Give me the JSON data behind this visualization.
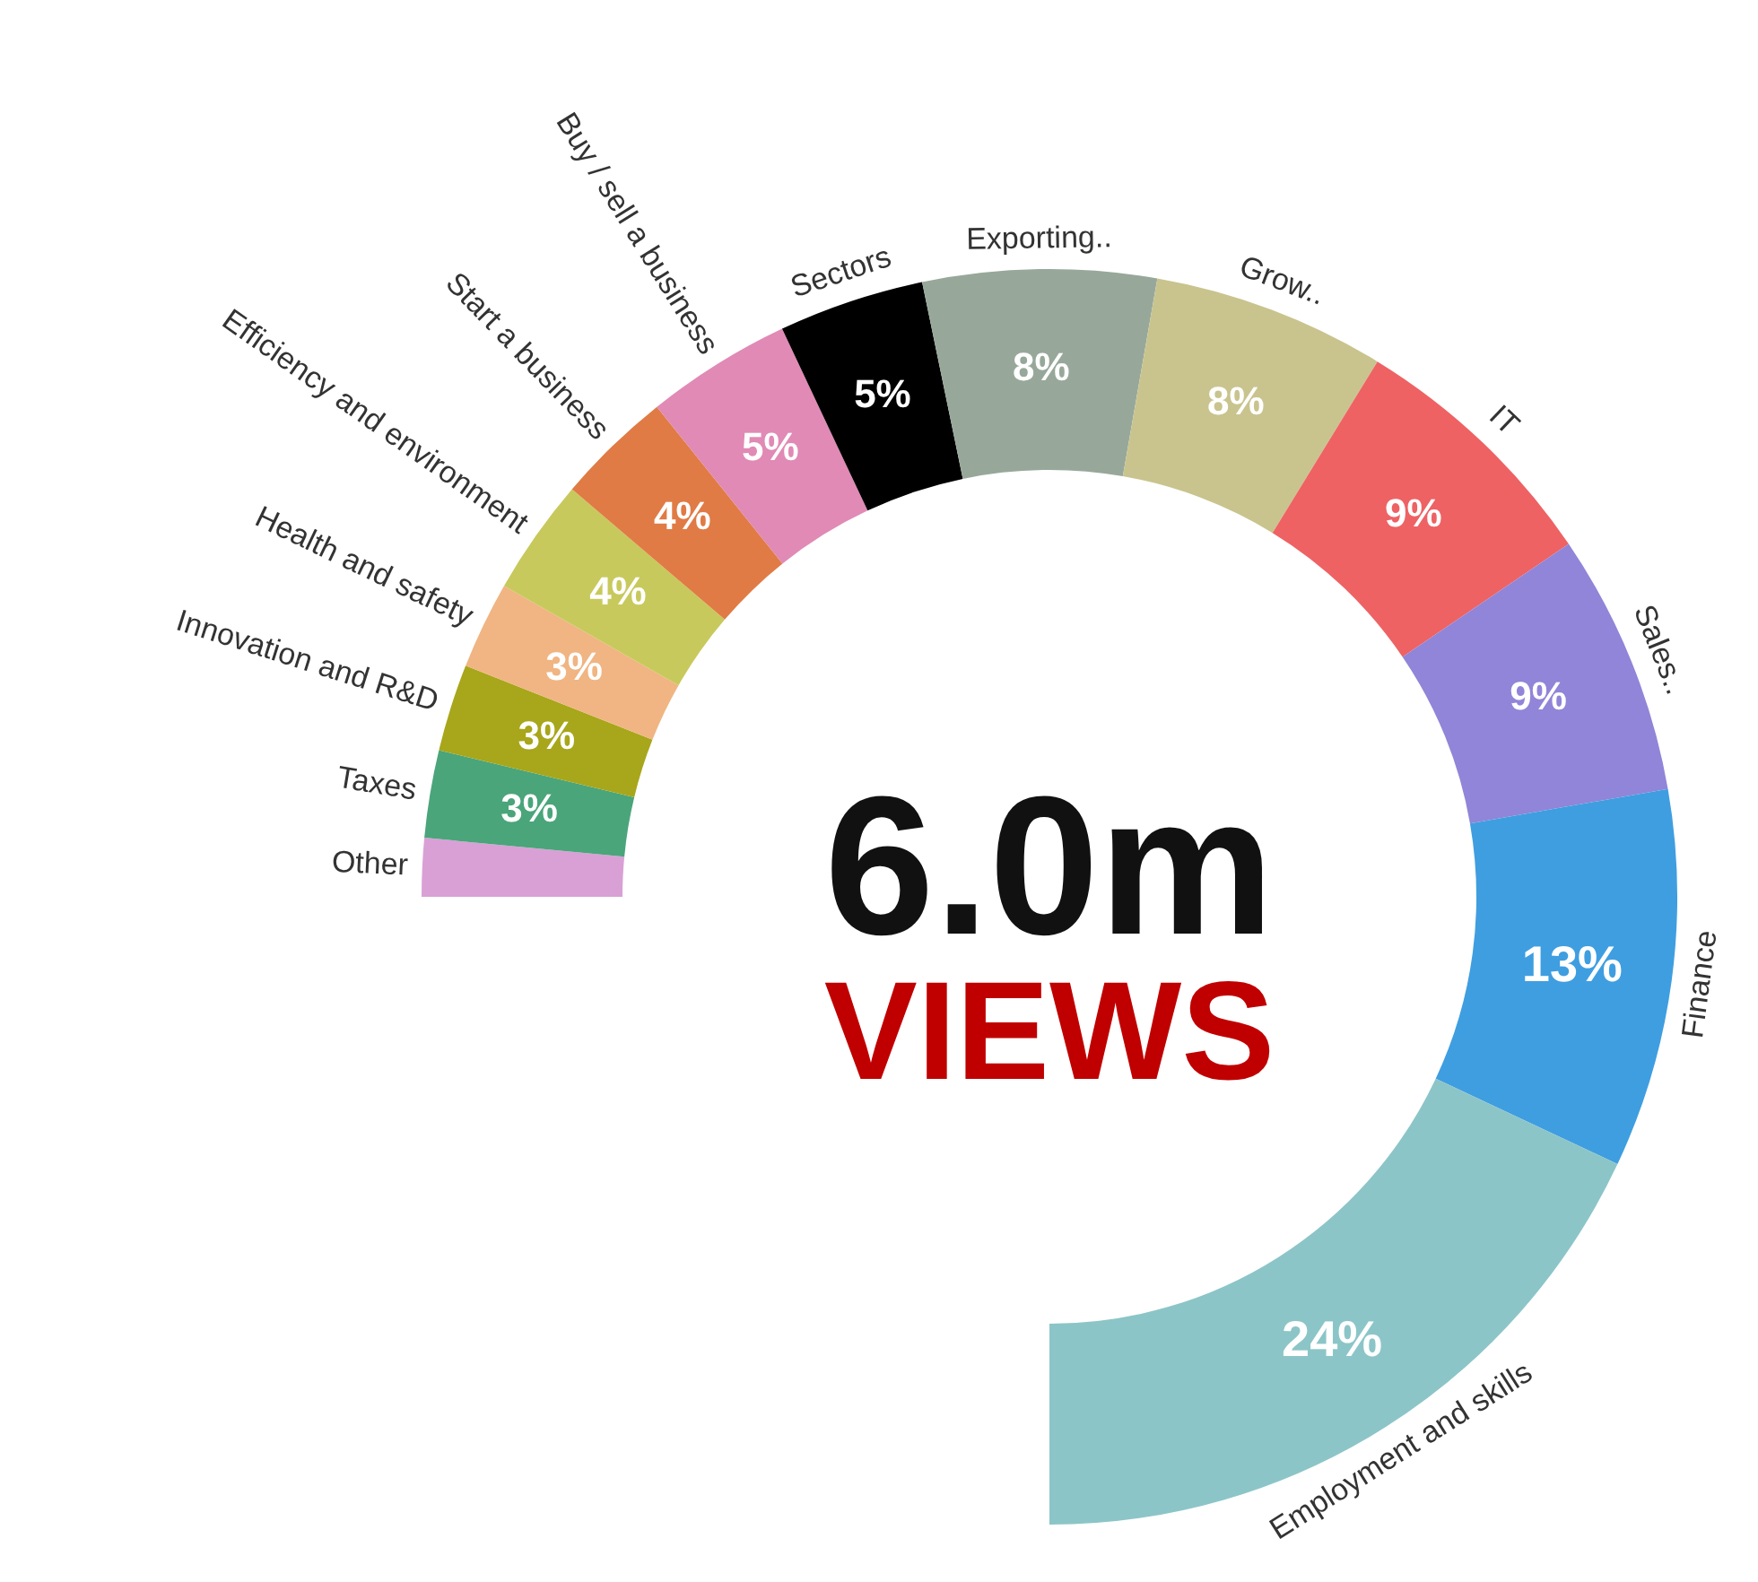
{
  "chart_data": {
    "type": "donut",
    "categories": [
      "Other",
      "Taxes",
      "Innovation and R&D",
      "Health and safety",
      "Efficiency and environment",
      "Start a business",
      "Buy / sell a business",
      "Sectors",
      "Exporting..",
      "Grow..",
      "IT",
      "Sales..",
      "Finance",
      "Employment and skills"
    ],
    "values": [
      2,
      3,
      3,
      3,
      4,
      4,
      5,
      5,
      8,
      8,
      9,
      9,
      13,
      24
    ],
    "colors": [
      "#d9a0d6",
      "#4aa57a",
      "#a8a61a",
      "#f0b582",
      "#c8c95c",
      "#e07b45",
      "#e08ab5",
      "#000000",
      "#97a89a",
      "#c9c48e",
      "#ee6264",
      "#9085d8",
      "#3f9ee0",
      "#8cc5c8"
    ],
    "value_labels": [
      null,
      "3%",
      "3%",
      "3%",
      "4%",
      "4%",
      "5%",
      "5%",
      "8%",
      "8%",
      "9%",
      "9%",
      "13%",
      "24%"
    ],
    "annotations": [
      "6.0m",
      "VIEWS"
    ],
    "legend": false
  }
}
